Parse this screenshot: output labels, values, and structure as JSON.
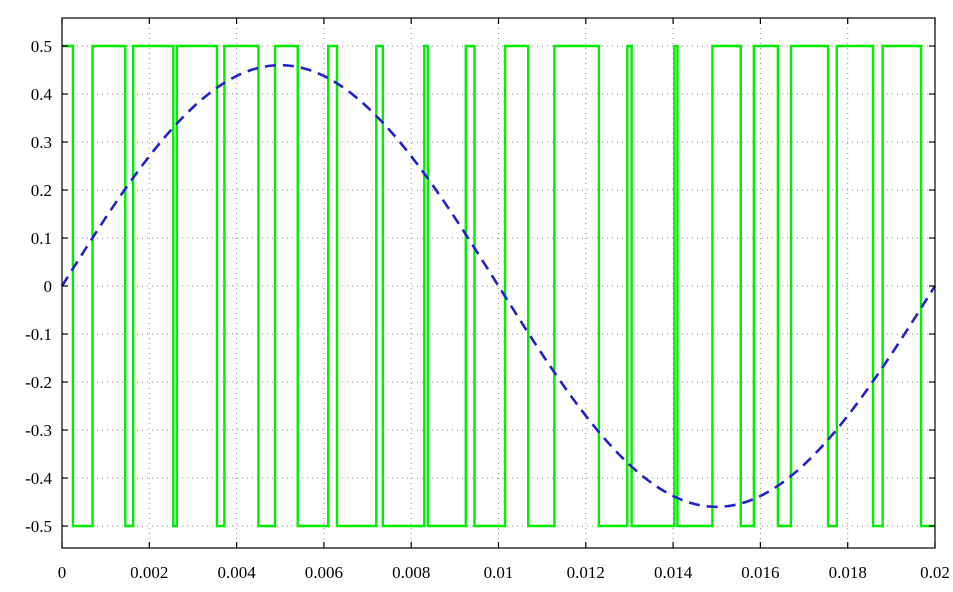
{
  "chart_data": {
    "type": "line",
    "title": "",
    "xlabel": "",
    "ylabel": "",
    "xlim": [
      0,
      0.02
    ],
    "ylim": [
      -0.55,
      0.52
    ],
    "grid": true,
    "legend": "none",
    "x_ticks": [
      "0",
      "0.002",
      "0.004",
      "0.006",
      "0.008",
      "0.01",
      "0.012",
      "0.014",
      "0.016",
      "0.018",
      "0.02"
    ],
    "x_tick_values": [
      0,
      0.002,
      0.004,
      0.006,
      0.008,
      0.01,
      0.012,
      0.014,
      0.016,
      0.018,
      0.02
    ],
    "y_ticks": [
      "0.5",
      "0.4",
      "0.3",
      "0.2",
      "0.1",
      "0",
      "-0.1",
      "-0.2",
      "-0.3",
      "-0.4",
      "-0.5"
    ],
    "y_tick_values": [
      0.5,
      0.4,
      0.3,
      0.2,
      0.1,
      0,
      -0.1,
      -0.2,
      -0.3,
      -0.4,
      -0.5
    ],
    "series": [
      {
        "style": "step",
        "color": "#00ee00",
        "points": [
          [
            0,
            0.5
          ],
          [
            0.00025,
            0.5
          ],
          [
            0.00025,
            -0.5
          ],
          [
            0.0007,
            -0.5
          ],
          [
            0.0007,
            0.5
          ],
          [
            0.00145,
            0.5
          ],
          [
            0.00145,
            -0.5
          ],
          [
            0.00163,
            -0.5
          ],
          [
            0.00163,
            0.5
          ],
          [
            0.00255,
            0.5
          ],
          [
            0.00255,
            -0.5
          ],
          [
            0.00263,
            -0.5
          ],
          [
            0.00263,
            0.5
          ],
          [
            0.00355,
            0.5
          ],
          [
            0.00355,
            -0.5
          ],
          [
            0.00372,
            -0.5
          ],
          [
            0.00372,
            0.5
          ],
          [
            0.0045,
            0.5
          ],
          [
            0.0045,
            -0.5
          ],
          [
            0.00488,
            -0.5
          ],
          [
            0.00488,
            0.5
          ],
          [
            0.0054,
            0.5
          ],
          [
            0.0054,
            -0.5
          ],
          [
            0.0061,
            -0.5
          ],
          [
            0.0061,
            0.5
          ],
          [
            0.0063,
            0.5
          ],
          [
            0.0063,
            -0.5
          ],
          [
            0.0072,
            -0.5
          ],
          [
            0.0072,
            0.5
          ],
          [
            0.00735,
            0.5
          ],
          [
            0.00735,
            -0.5
          ],
          [
            0.0083,
            -0.5
          ],
          [
            0.0083,
            0.5
          ],
          [
            0.00838,
            0.5
          ],
          [
            0.00838,
            -0.5
          ],
          [
            0.00925,
            -0.5
          ],
          [
            0.00925,
            0.5
          ],
          [
            0.00945,
            0.5
          ],
          [
            0.00945,
            -0.5
          ],
          [
            0.01015,
            -0.5
          ],
          [
            0.01015,
            0.5
          ],
          [
            0.01068,
            0.5
          ],
          [
            0.01068,
            -0.5
          ],
          [
            0.01128,
            -0.5
          ],
          [
            0.01128,
            0.5
          ],
          [
            0.0123,
            0.5
          ],
          [
            0.0123,
            -0.5
          ],
          [
            0.01295,
            -0.5
          ],
          [
            0.01295,
            0.5
          ],
          [
            0.01305,
            0.5
          ],
          [
            0.01305,
            -0.5
          ],
          [
            0.01403,
            -0.5
          ],
          [
            0.01403,
            0.5
          ],
          [
            0.0141,
            0.5
          ],
          [
            0.0141,
            -0.5
          ],
          [
            0.0149,
            -0.5
          ],
          [
            0.0149,
            0.5
          ],
          [
            0.01555,
            0.5
          ],
          [
            0.01555,
            -0.5
          ],
          [
            0.01585,
            -0.5
          ],
          [
            0.01585,
            0.5
          ],
          [
            0.0164,
            0.5
          ],
          [
            0.0164,
            -0.5
          ],
          [
            0.0167,
            -0.5
          ],
          [
            0.0167,
            0.5
          ],
          [
            0.01755,
            0.5
          ],
          [
            0.01755,
            -0.5
          ],
          [
            0.01775,
            -0.5
          ],
          [
            0.01775,
            0.5
          ],
          [
            0.01858,
            0.5
          ],
          [
            0.01858,
            -0.5
          ],
          [
            0.0188,
            -0.5
          ],
          [
            0.0188,
            0.5
          ],
          [
            0.01968,
            0.5
          ],
          [
            0.01968,
            -0.5
          ],
          [
            0.02,
            -0.5
          ]
        ]
      },
      {
        "style": "dashed",
        "color": "#2222cc",
        "function": "sine",
        "amplitude": 0.46,
        "frequency_hz": 50,
        "x_range": [
          0,
          0.02
        ]
      }
    ]
  }
}
